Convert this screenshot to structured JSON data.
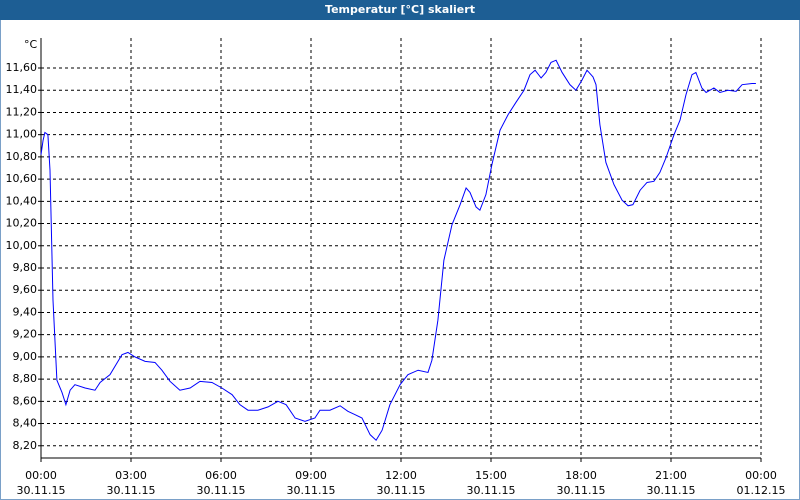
{
  "chart_data": {
    "type": "line",
    "title": "Temperatur [°C] skaliert",
    "y_label": "°C",
    "xlim": [
      0,
      24
    ],
    "ylim": [
      8.09,
      11.87
    ],
    "xticks": [
      {
        "value": 0,
        "label": "00:00"
      },
      {
        "value": 3,
        "label": "03:00"
      },
      {
        "value": 6,
        "label": "06:00"
      },
      {
        "value": 9,
        "label": "09:00"
      },
      {
        "value": 12,
        "label": "12:00"
      },
      {
        "value": 15,
        "label": "15:00"
      },
      {
        "value": 18,
        "label": "18:00"
      },
      {
        "value": 21,
        "label": "21:00"
      },
      {
        "value": 24,
        "label": "00:00"
      }
    ],
    "xtick_dates": [
      "30.11.15",
      "30.11.15",
      "30.11.15",
      "30.11.15",
      "30.11.15",
      "30.11.15",
      "30.11.15",
      "30.11.15",
      "01.12.15"
    ],
    "yticks": [
      {
        "value": 8.2,
        "label": "8,20"
      },
      {
        "value": 8.4,
        "label": "8,40"
      },
      {
        "value": 8.6,
        "label": "8,60"
      },
      {
        "value": 8.8,
        "label": "8,80"
      },
      {
        "value": 9.0,
        "label": "9,00"
      },
      {
        "value": 9.2,
        "label": "9,20"
      },
      {
        "value": 9.4,
        "label": "9,40"
      },
      {
        "value": 9.6,
        "label": "9,60"
      },
      {
        "value": 9.8,
        "label": "9,80"
      },
      {
        "value": 10.0,
        "label": "10,00"
      },
      {
        "value": 10.2,
        "label": "10,20"
      },
      {
        "value": 10.4,
        "label": "10,40"
      },
      {
        "value": 10.6,
        "label": "10,60"
      },
      {
        "value": 10.8,
        "label": "10,80"
      },
      {
        "value": 11.0,
        "label": "11,00"
      },
      {
        "value": 11.2,
        "label": "11,20"
      },
      {
        "value": 11.4,
        "label": "11,40"
      },
      {
        "value": 11.6,
        "label": "11,60"
      }
    ],
    "grid": true,
    "x": [
      0,
      0.07,
      0.13,
      0.23,
      0.3,
      0.4,
      0.53,
      0.7,
      0.83,
      0.97,
      1.13,
      1.47,
      1.8,
      1.97,
      2.3,
      2.5,
      2.7,
      2.9,
      3.13,
      3.47,
      3.8,
      4.03,
      4.3,
      4.63,
      4.97,
      5.3,
      5.7,
      6.03,
      6.37,
      6.63,
      6.9,
      7.23,
      7.57,
      7.9,
      8.17,
      8.47,
      8.8,
      9.13,
      9.3,
      9.63,
      9.97,
      10.23,
      10.47,
      10.7,
      10.97,
      11.17,
      11.37,
      11.63,
      11.97,
      12.23,
      12.57,
      12.9,
      13.03,
      13.23,
      13.43,
      13.7,
      13.97,
      14.17,
      14.3,
      14.5,
      14.63,
      14.83,
      15.03,
      15.3,
      15.57,
      15.83,
      16.1,
      16.3,
      16.47,
      16.67,
      16.83,
      17,
      17.17,
      17.37,
      17.63,
      17.83,
      18.03,
      18.2,
      18.4,
      18.5,
      18.63,
      18.83,
      19.1,
      19.37,
      19.57,
      19.73,
      19.97,
      20.2,
      20.43,
      20.63,
      20.83,
      21.1,
      21.3,
      21.5,
      21.7,
      21.83,
      22.03,
      22.17,
      22.43,
      22.63,
      22.9,
      23.17,
      23.37,
      23.7,
      23.83
    ],
    "series": [
      {
        "name": "Temperatur",
        "color": "#0000ff",
        "values": [
          10.82,
          10.95,
          11.02,
          11.0,
          10.68,
          9.51,
          8.79,
          8.68,
          8.57,
          8.7,
          8.75,
          8.72,
          8.7,
          8.77,
          8.84,
          8.93,
          9.02,
          9.04,
          9.0,
          8.96,
          8.95,
          8.88,
          8.78,
          8.7,
          8.72,
          8.78,
          8.77,
          8.72,
          8.66,
          8.57,
          8.52,
          8.52,
          8.55,
          8.6,
          8.57,
          8.45,
          8.42,
          8.45,
          8.52,
          8.52,
          8.56,
          8.51,
          8.48,
          8.45,
          8.3,
          8.25,
          8.34,
          8.57,
          8.75,
          8.84,
          8.88,
          8.86,
          8.97,
          9.33,
          9.87,
          10.19,
          10.37,
          10.52,
          10.48,
          10.35,
          10.32,
          10.46,
          10.73,
          11.04,
          11.18,
          11.29,
          11.4,
          11.54,
          11.58,
          11.51,
          11.56,
          11.65,
          11.67,
          11.56,
          11.45,
          11.4,
          11.49,
          11.58,
          11.52,
          11.45,
          11.09,
          10.75,
          10.55,
          10.41,
          10.36,
          10.37,
          10.5,
          10.57,
          10.58,
          10.66,
          10.79,
          11.0,
          11.13,
          11.36,
          11.54,
          11.56,
          11.42,
          11.38,
          11.42,
          11.38,
          11.4,
          11.39,
          11.45,
          11.46,
          11.46
        ]
      }
    ]
  }
}
